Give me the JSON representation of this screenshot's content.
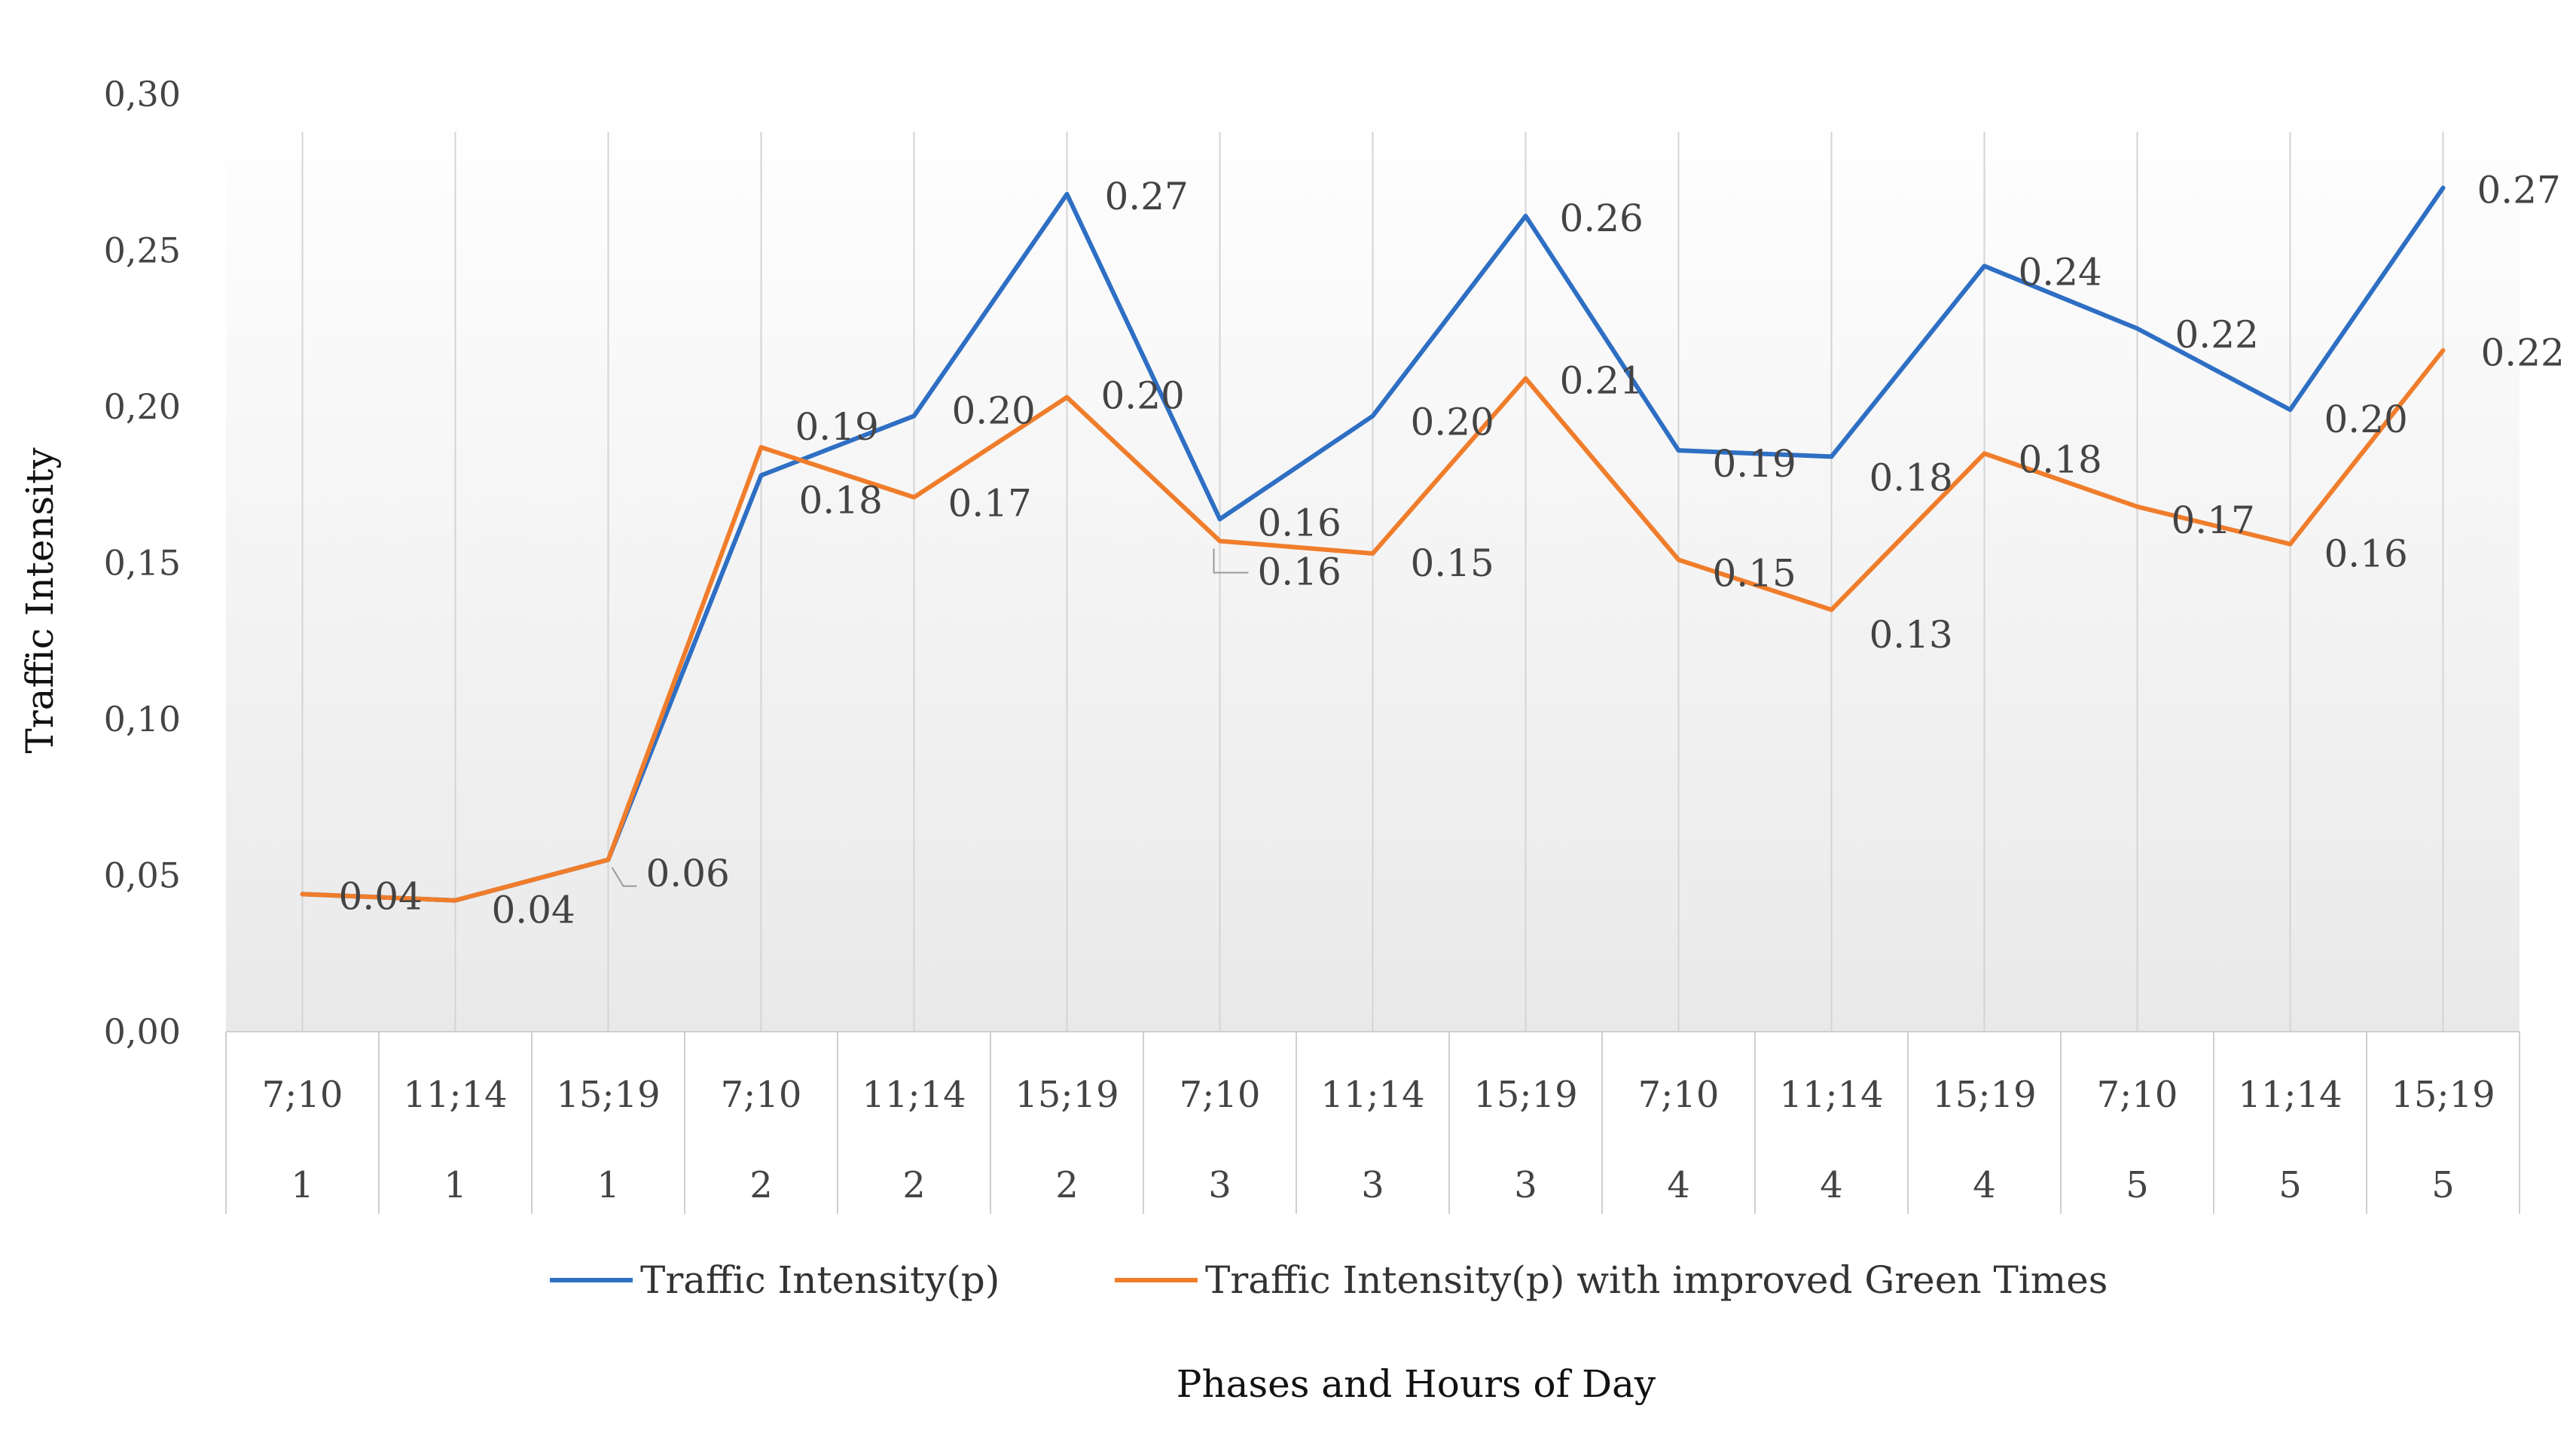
{
  "chart_data": {
    "type": "line",
    "title": "",
    "xlabel": "Phases and Hours of Day",
    "ylabel": "Traffic Intensity",
    "ylim": [
      0,
      0.3
    ],
    "yticks": [
      "0,00",
      "0,05",
      "0,10",
      "0,15",
      "0,20",
      "0,25",
      "0,30"
    ],
    "categories": [
      {
        "hours": "7;10",
        "phase": "1"
      },
      {
        "hours": "11;14",
        "phase": "1"
      },
      {
        "hours": "15;19",
        "phase": "1"
      },
      {
        "hours": "7;10",
        "phase": "2"
      },
      {
        "hours": "11;14",
        "phase": "2"
      },
      {
        "hours": "15;19",
        "phase": "2"
      },
      {
        "hours": "7;10",
        "phase": "3"
      },
      {
        "hours": "11;14",
        "phase": "3"
      },
      {
        "hours": "15;19",
        "phase": "3"
      },
      {
        "hours": "7;10",
        "phase": "4"
      },
      {
        "hours": "11;14",
        "phase": "4"
      },
      {
        "hours": "15;19",
        "phase": "4"
      },
      {
        "hours": "7;10",
        "phase": "5"
      },
      {
        "hours": "11;14",
        "phase": "5"
      },
      {
        "hours": "15;19",
        "phase": "5"
      }
    ],
    "series": [
      {
        "name": "Traffic Intensity(p)",
        "color": "#2E6FC4",
        "values": [
          0.044,
          0.042,
          0.055,
          0.178,
          0.197,
          0.268,
          0.164,
          0.197,
          0.261,
          0.186,
          0.184,
          0.245,
          0.225,
          0.199,
          0.27
        ],
        "labels": [
          "",
          "",
          "",
          "0.18",
          "0.20",
          "0.27",
          "0.16",
          "0.20",
          "0.26",
          "0.19",
          "0.18",
          "0.24",
          "0.22",
          "0.20",
          "0.27"
        ]
      },
      {
        "name": "Traffic Intensity(p) with improved Green Times",
        "color": "#F07D2B",
        "values": [
          0.044,
          0.042,
          0.055,
          0.187,
          0.171,
          0.203,
          0.157,
          0.153,
          0.209,
          0.151,
          0.135,
          0.185,
          0.168,
          0.156,
          0.218
        ],
        "labels": [
          "0.04",
          "0.04",
          "0.06",
          "0.19",
          "0.17",
          "0.20",
          "0.16",
          "0.15",
          "0.21",
          "0.15",
          "0.13",
          "0.18",
          "0.17",
          "0.16",
          "0.22"
        ]
      }
    ],
    "legend": "bottom"
  }
}
